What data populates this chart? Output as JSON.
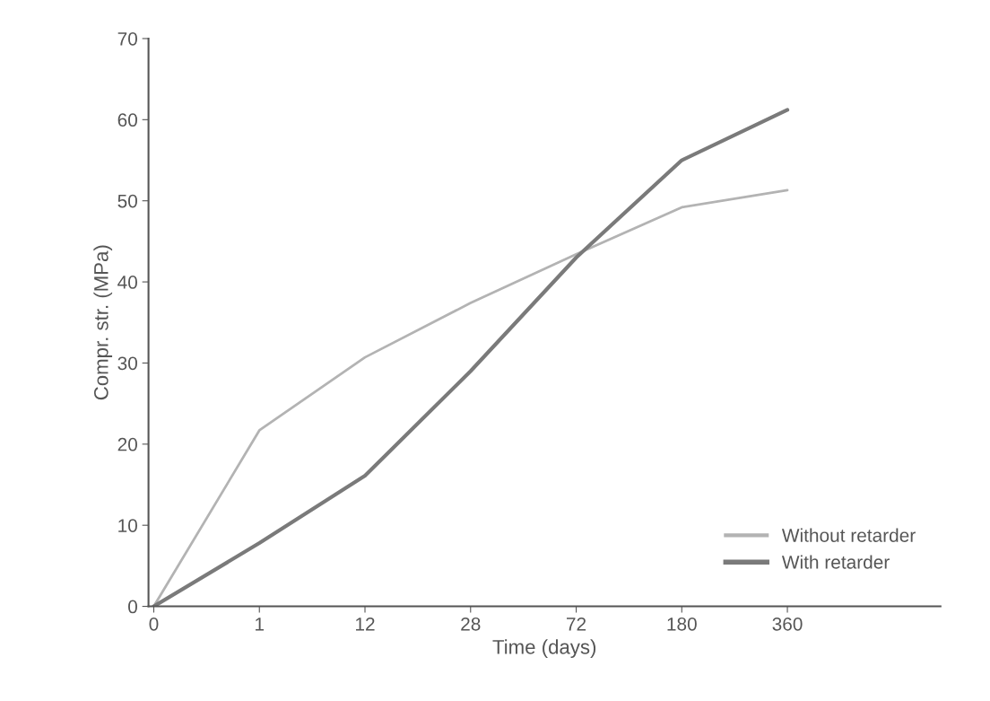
{
  "chart_data": {
    "type": "line",
    "xlabel": "Time (days)",
    "ylabel": "Compr. str. (MPa)",
    "categories": [
      "0",
      "1",
      "12",
      "28",
      "72",
      "180",
      "360"
    ],
    "series": [
      {
        "name": "Without retarder",
        "color": "#b3b3b3",
        "values": [
          0,
          21.7,
          30.7,
          37.4,
          43.4,
          49.2,
          51.3
        ]
      },
      {
        "name": "With retarder",
        "color": "#7a7a7a",
        "values": [
          0,
          7.8,
          16.1,
          29,
          43,
          55,
          61.2
        ]
      }
    ],
    "ylim": [
      0,
      70
    ],
    "yticks": [
      0,
      10,
      20,
      30,
      40,
      50,
      60,
      70
    ],
    "grid": false,
    "legend": "bottom right",
    "marker": "none",
    "line_style": "solid"
  }
}
